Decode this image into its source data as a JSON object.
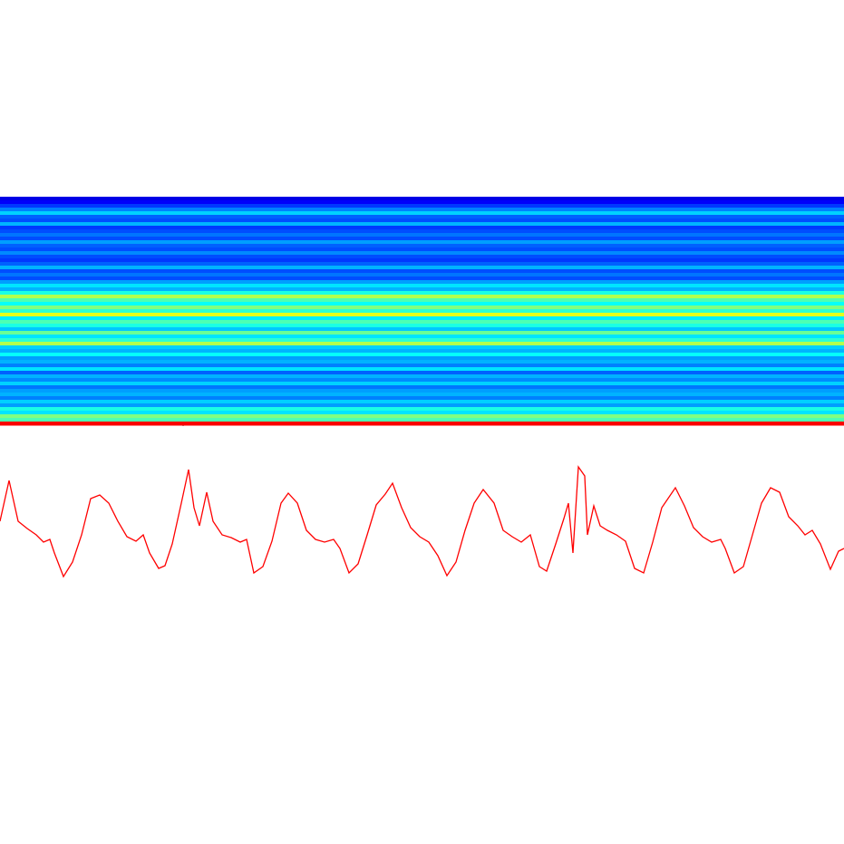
{
  "chart_data": [
    {
      "type": "heatmap",
      "colormap": "jet",
      "vlim": [
        0,
        1
      ],
      "values": [
        0.1,
        0.12,
        0.18,
        0.25,
        0.33,
        0.22,
        0.2,
        0.3,
        0.18,
        0.2,
        0.24,
        0.2,
        0.28,
        0.22,
        0.2,
        0.26,
        0.2,
        0.18,
        0.22,
        0.3,
        0.2,
        0.24,
        0.2,
        0.28,
        0.35,
        0.3,
        0.4,
        0.55,
        0.45,
        0.38,
        0.5,
        0.42,
        0.6,
        0.36,
        0.45,
        0.4,
        0.32,
        0.48,
        0.35,
        0.42,
        0.55,
        0.33,
        0.3,
        0.38,
        0.28,
        0.3,
        0.25,
        0.35,
        0.22,
        0.3,
        0.26,
        0.33,
        0.24,
        0.28,
        0.3,
        0.25,
        0.33,
        0.28,
        0.4,
        0.35,
        0.5,
        0.45,
        0.88
      ]
    },
    {
      "type": "line",
      "color": "#ff0000",
      "xlim": [
        0,
        931
      ],
      "ylim": [
        0,
        130
      ],
      "x": [
        0,
        10,
        20,
        30,
        40,
        48,
        55,
        60,
        70,
        80,
        90,
        100,
        110,
        120,
        130,
        140,
        150,
        158,
        165,
        175,
        182,
        190,
        200,
        208,
        214,
        220,
        228,
        235,
        245,
        255,
        265,
        272,
        280,
        290,
        300,
        310,
        318,
        328,
        338,
        348,
        358,
        368,
        375,
        385,
        395,
        405,
        415,
        425,
        433,
        443,
        453,
        463,
        473,
        483,
        493,
        503,
        513,
        523,
        533,
        545,
        555,
        565,
        575,
        585,
        595,
        603,
        613,
        622,
        627,
        632,
        638,
        645,
        648,
        655,
        662,
        670,
        680,
        690,
        700,
        710,
        720,
        730,
        745,
        755,
        765,
        775,
        785,
        795,
        800,
        810,
        820,
        830,
        840,
        850,
        860,
        870,
        880,
        888,
        896,
        905,
        916,
        925,
        931
      ],
      "values": [
        65,
        110,
        65,
        57,
        50,
        42,
        45,
        30,
        4,
        20,
        50,
        90,
        94,
        85,
        65,
        48,
        43,
        50,
        30,
        13,
        16,
        40,
        85,
        122,
        80,
        60,
        97,
        65,
        50,
        47,
        42,
        45,
        8,
        15,
        43,
        85,
        96,
        85,
        55,
        45,
        42,
        45,
        35,
        8,
        18,
        50,
        83,
        95,
        107,
        80,
        58,
        48,
        42,
        27,
        5,
        20,
        55,
        85,
        100,
        85,
        55,
        48,
        42,
        50,
        15,
        10,
        40,
        68,
        85,
        30,
        125,
        115,
        50,
        82,
        60,
        55,
        50,
        43,
        13,
        8,
        42,
        80,
        102,
        82,
        58,
        48,
        42,
        45,
        35,
        8,
        15,
        50,
        85,
        102,
        97,
        70,
        60,
        50,
        55,
        40,
        12,
        32,
        35
      ]
    }
  ]
}
